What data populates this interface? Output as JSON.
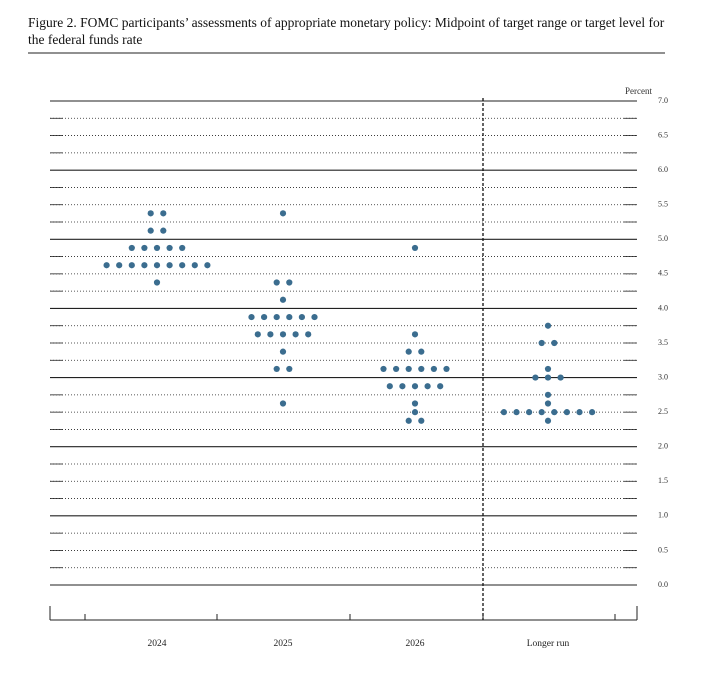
{
  "chart_data": {
    "type": "dot",
    "title": "Figure 2.  FOMC participants’ assessments of appropriate monetary policy: Midpoint of target range or target level for the federal funds rate",
    "y_label": "Percent",
    "color": "#3b6d8f",
    "categories": [
      "2024",
      "2025",
      "2026",
      "Longer run"
    ],
    "values": [
      [
        5.375,
        5.375,
        5.125,
        5.125,
        4.875,
        4.875,
        4.875,
        4.875,
        4.875,
        4.625,
        4.625,
        4.625,
        4.625,
        4.625,
        4.625,
        4.625,
        4.625,
        4.625,
        4.375
      ],
      [
        5.375,
        4.375,
        4.375,
        4.125,
        3.875,
        3.875,
        3.875,
        3.875,
        3.875,
        3.875,
        3.625,
        3.625,
        3.625,
        3.625,
        3.625,
        3.375,
        3.125,
        3.125,
        2.625
      ],
      [
        4.875,
        3.625,
        3.375,
        3.375,
        3.125,
        3.125,
        3.125,
        3.125,
        3.125,
        3.125,
        2.875,
        2.875,
        2.875,
        2.875,
        2.875,
        2.625,
        2.5,
        2.375,
        2.375
      ],
      [
        3.75,
        3.5,
        3.5,
        3.125,
        3.0,
        3.0,
        3.0,
        2.75,
        2.625,
        2.5,
        2.5,
        2.5,
        2.5,
        2.5,
        2.5,
        2.5,
        2.5,
        2.375
      ]
    ],
    "ylim": [
      0,
      7
    ],
    "yticks": [
      {
        "value": 0,
        "label": "0.0"
      },
      0.5,
      {
        "value": 1,
        "label": "1.0"
      },
      1.5,
      {
        "value": 2,
        "label": "2.0"
      },
      2.5,
      {
        "value": 3,
        "label": "3.0"
      },
      3.5,
      {
        "value": 4,
        "label": "4.0"
      },
      4.5,
      {
        "value": 5,
        "label": "5.0"
      },
      5.5,
      {
        "value": 6,
        "label": "6.0"
      },
      6.5,
      {
        "value": 7,
        "label": "7.0"
      }
    ],
    "grid": true
  }
}
